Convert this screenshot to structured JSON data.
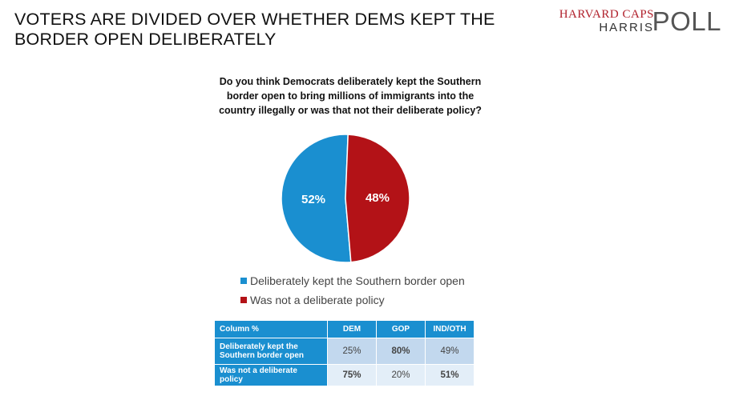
{
  "title": "VOTERS ARE DIVIDED OVER WHETHER DEMS KEPT THE BORDER OPEN DELIBERATELY",
  "logo": {
    "line1": "HARVARD CAPS",
    "line2": "HARRIS",
    "line3": "POLL"
  },
  "question": "Do you think Democrats deliberately kept the Southern border open to bring millions of immigrants into the country illegally or was that not their deliberate policy?",
  "colors": {
    "blue": "#1a8fd0",
    "red": "#b31217"
  },
  "chart_data": {
    "type": "pie",
    "title": "Do you think Democrats deliberately kept the Southern border open to bring millions of immigrants into the country illegally or was that not their deliberate policy?",
    "slices": [
      {
        "label": "Deliberately kept the Southern border open",
        "value": 52,
        "display": "52%",
        "color": "#1a8fd0"
      },
      {
        "label": "Was not a deliberate policy",
        "value": 48,
        "display": "48%",
        "color": "#b31217"
      }
    ],
    "legend_position": "bottom"
  },
  "legend": [
    {
      "label": "Deliberately kept the Southern border open",
      "color": "#1a8fd0"
    },
    {
      "label": "Was not a deliberate policy",
      "color": "#b31217"
    }
  ],
  "table": {
    "header": [
      "Column %",
      "DEM",
      "GOP",
      "IND/OTH"
    ],
    "rows": [
      {
        "label": "Deliberately kept the Southern border open",
        "values": [
          "25%",
          "80%",
          "49%"
        ]
      },
      {
        "label": "Was not a deliberate policy",
        "values": [
          "75%",
          "20%",
          "51%"
        ]
      }
    ]
  }
}
